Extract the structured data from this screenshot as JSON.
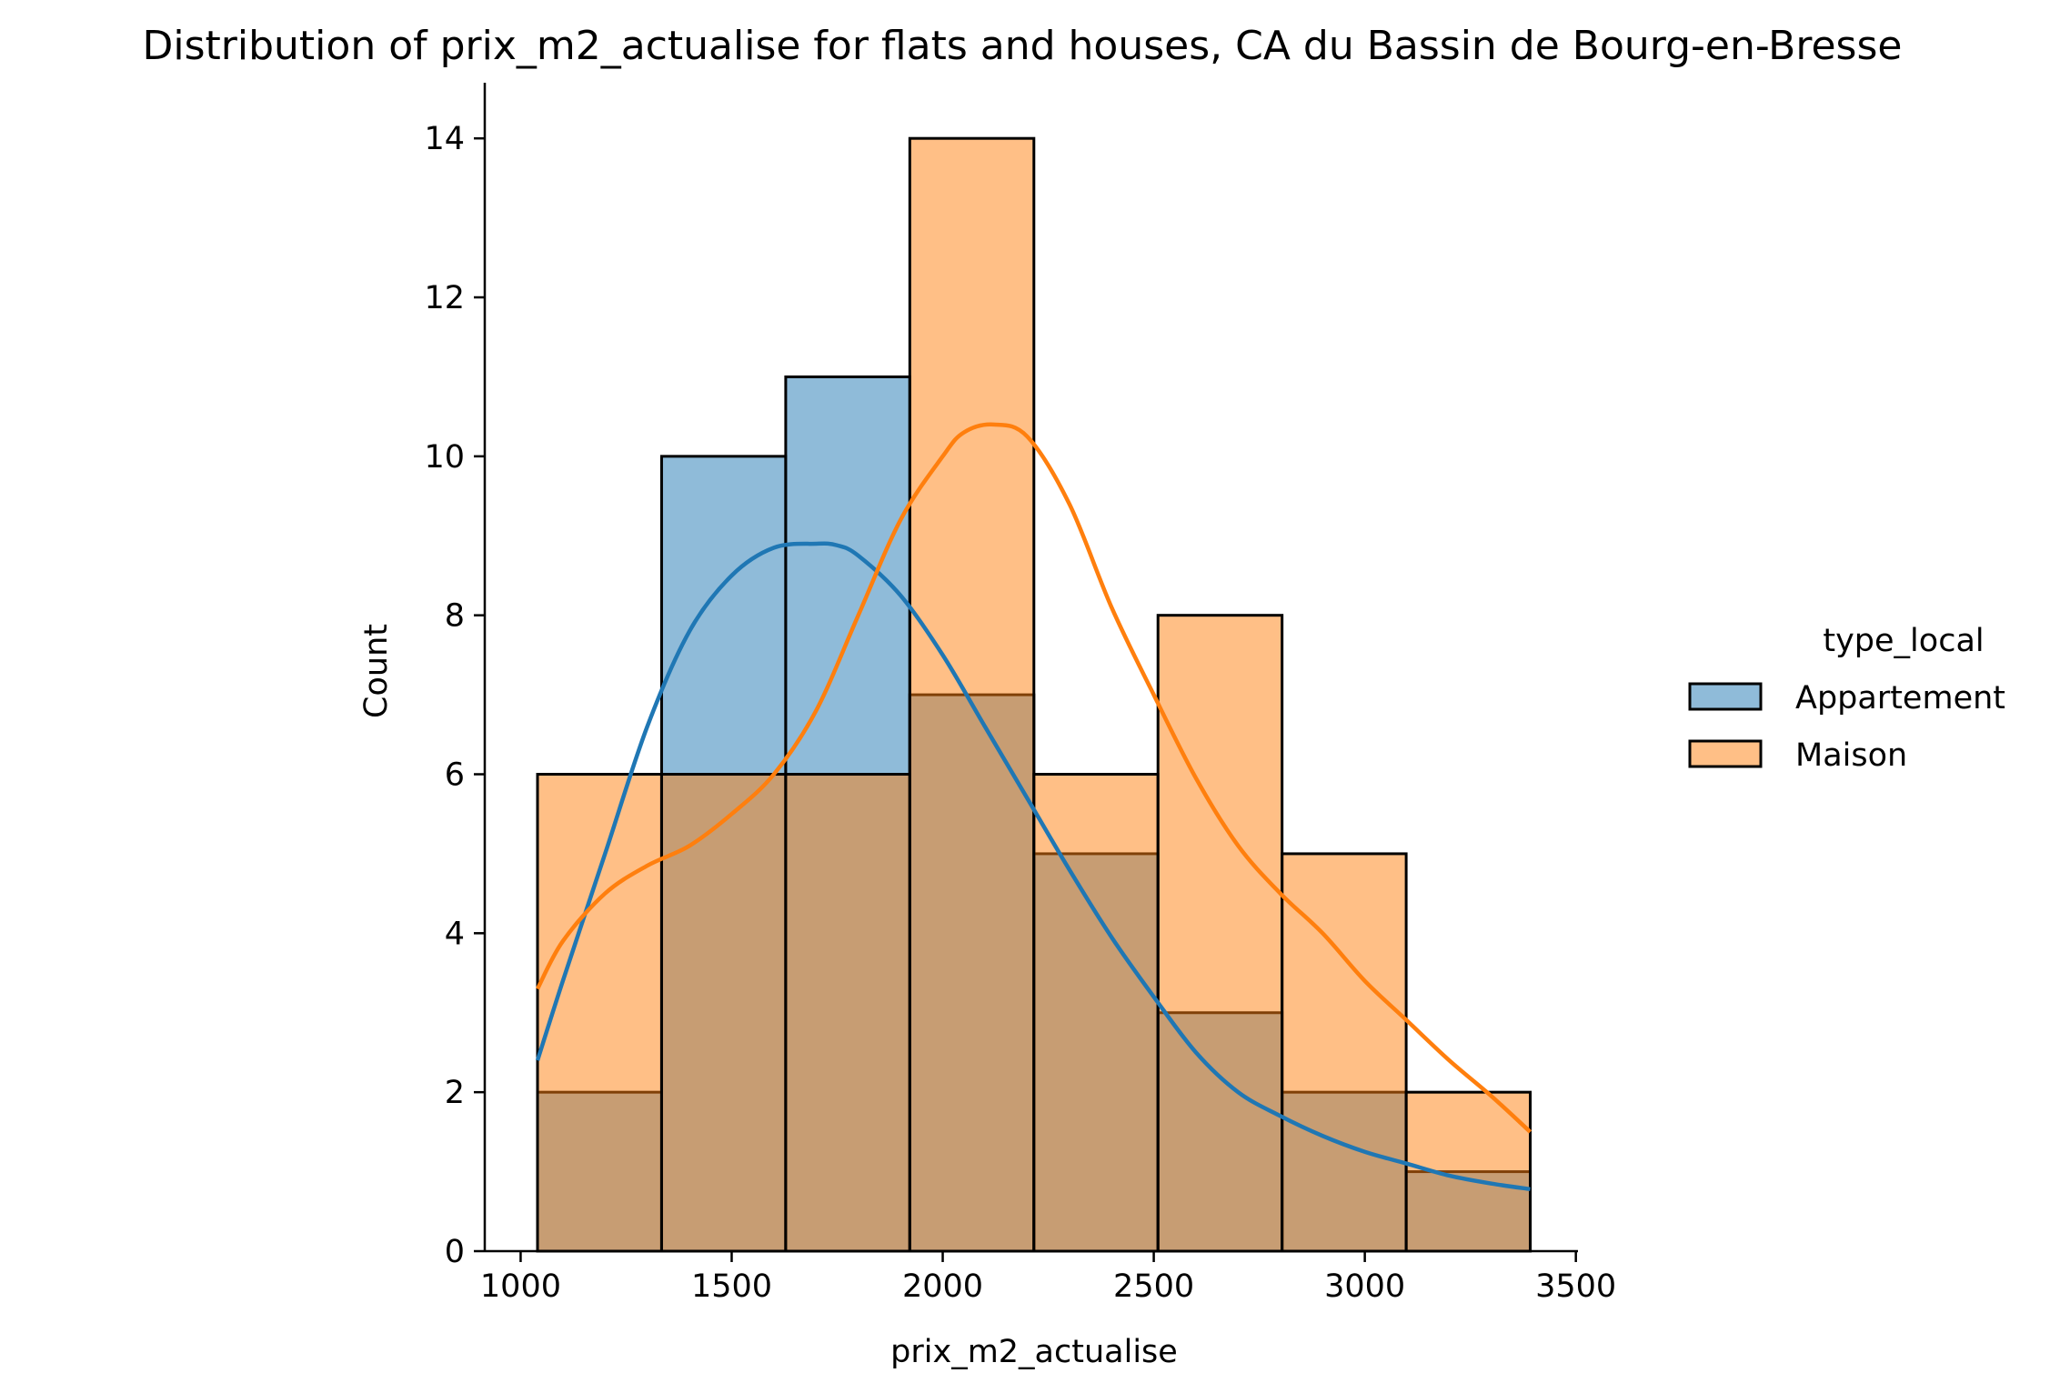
{
  "chart_data": {
    "type": "bar",
    "subtype": "histogram-with-kde",
    "title": "Distribution of prix_m2_actualise for flats and houses, CA du Bassin de Bourg-en-Bresse",
    "xlabel": "prix_m2_actualise",
    "ylabel": "Count",
    "xlim": [
      915,
      3505
    ],
    "ylim": [
      0,
      14.7
    ],
    "xticks": [
      1000,
      1500,
      2000,
      2500,
      3000,
      3500
    ],
    "xtick_labels": [
      "1000",
      "1500",
      "2000",
      "2500",
      "3000",
      "3500"
    ],
    "yticks": [
      0,
      2,
      4,
      6,
      8,
      10,
      12,
      14
    ],
    "ytick_labels": [
      "0",
      "2",
      "4",
      "6",
      "8",
      "10",
      "12",
      "14"
    ],
    "grid": false,
    "legend": {
      "title": "type_local",
      "placement": "right-outside",
      "entries": [
        "Appartement",
        "Maison"
      ]
    },
    "bin_edges": [
      1040,
      1334,
      1628,
      1922,
      2216,
      2510,
      2804,
      3098,
      3392
    ],
    "series": [
      {
        "name": "Appartement",
        "color": "#1f77b4",
        "fill": "#8fb9da",
        "values": [
          2,
          10,
          11,
          7,
          5,
          3,
          2,
          1
        ],
        "kde": {
          "x": [
            1040,
            1100,
            1200,
            1300,
            1400,
            1500,
            1600,
            1700,
            1750,
            1800,
            1900,
            2000,
            2100,
            2200,
            2300,
            2400,
            2500,
            2600,
            2700,
            2800,
            2900,
            3000,
            3100,
            3200,
            3300,
            3392
          ],
          "y": [
            2.4,
            3.4,
            5.0,
            6.6,
            7.8,
            8.5,
            8.85,
            8.9,
            8.88,
            8.75,
            8.25,
            7.5,
            6.6,
            5.7,
            4.8,
            3.95,
            3.2,
            2.5,
            2.0,
            1.7,
            1.45,
            1.25,
            1.1,
            0.95,
            0.85,
            0.78
          ]
        }
      },
      {
        "name": "Maison",
        "color": "#ff7f0e",
        "fill": "#ffbb80",
        "values": [
          6,
          6,
          6,
          14,
          6,
          8,
          5,
          2
        ],
        "kde": {
          "x": [
            1040,
            1100,
            1200,
            1300,
            1400,
            1500,
            1600,
            1700,
            1800,
            1900,
            2000,
            2050,
            2120,
            2200,
            2300,
            2400,
            2500,
            2600,
            2700,
            2800,
            2900,
            3000,
            3100,
            3200,
            3300,
            3392
          ],
          "y": [
            3.3,
            3.9,
            4.5,
            4.85,
            5.1,
            5.5,
            6.0,
            6.8,
            8.0,
            9.2,
            10.0,
            10.3,
            10.4,
            10.25,
            9.4,
            8.1,
            7.0,
            5.95,
            5.1,
            4.5,
            4.0,
            3.4,
            2.9,
            2.4,
            1.95,
            1.5
          ]
        }
      }
    ]
  }
}
